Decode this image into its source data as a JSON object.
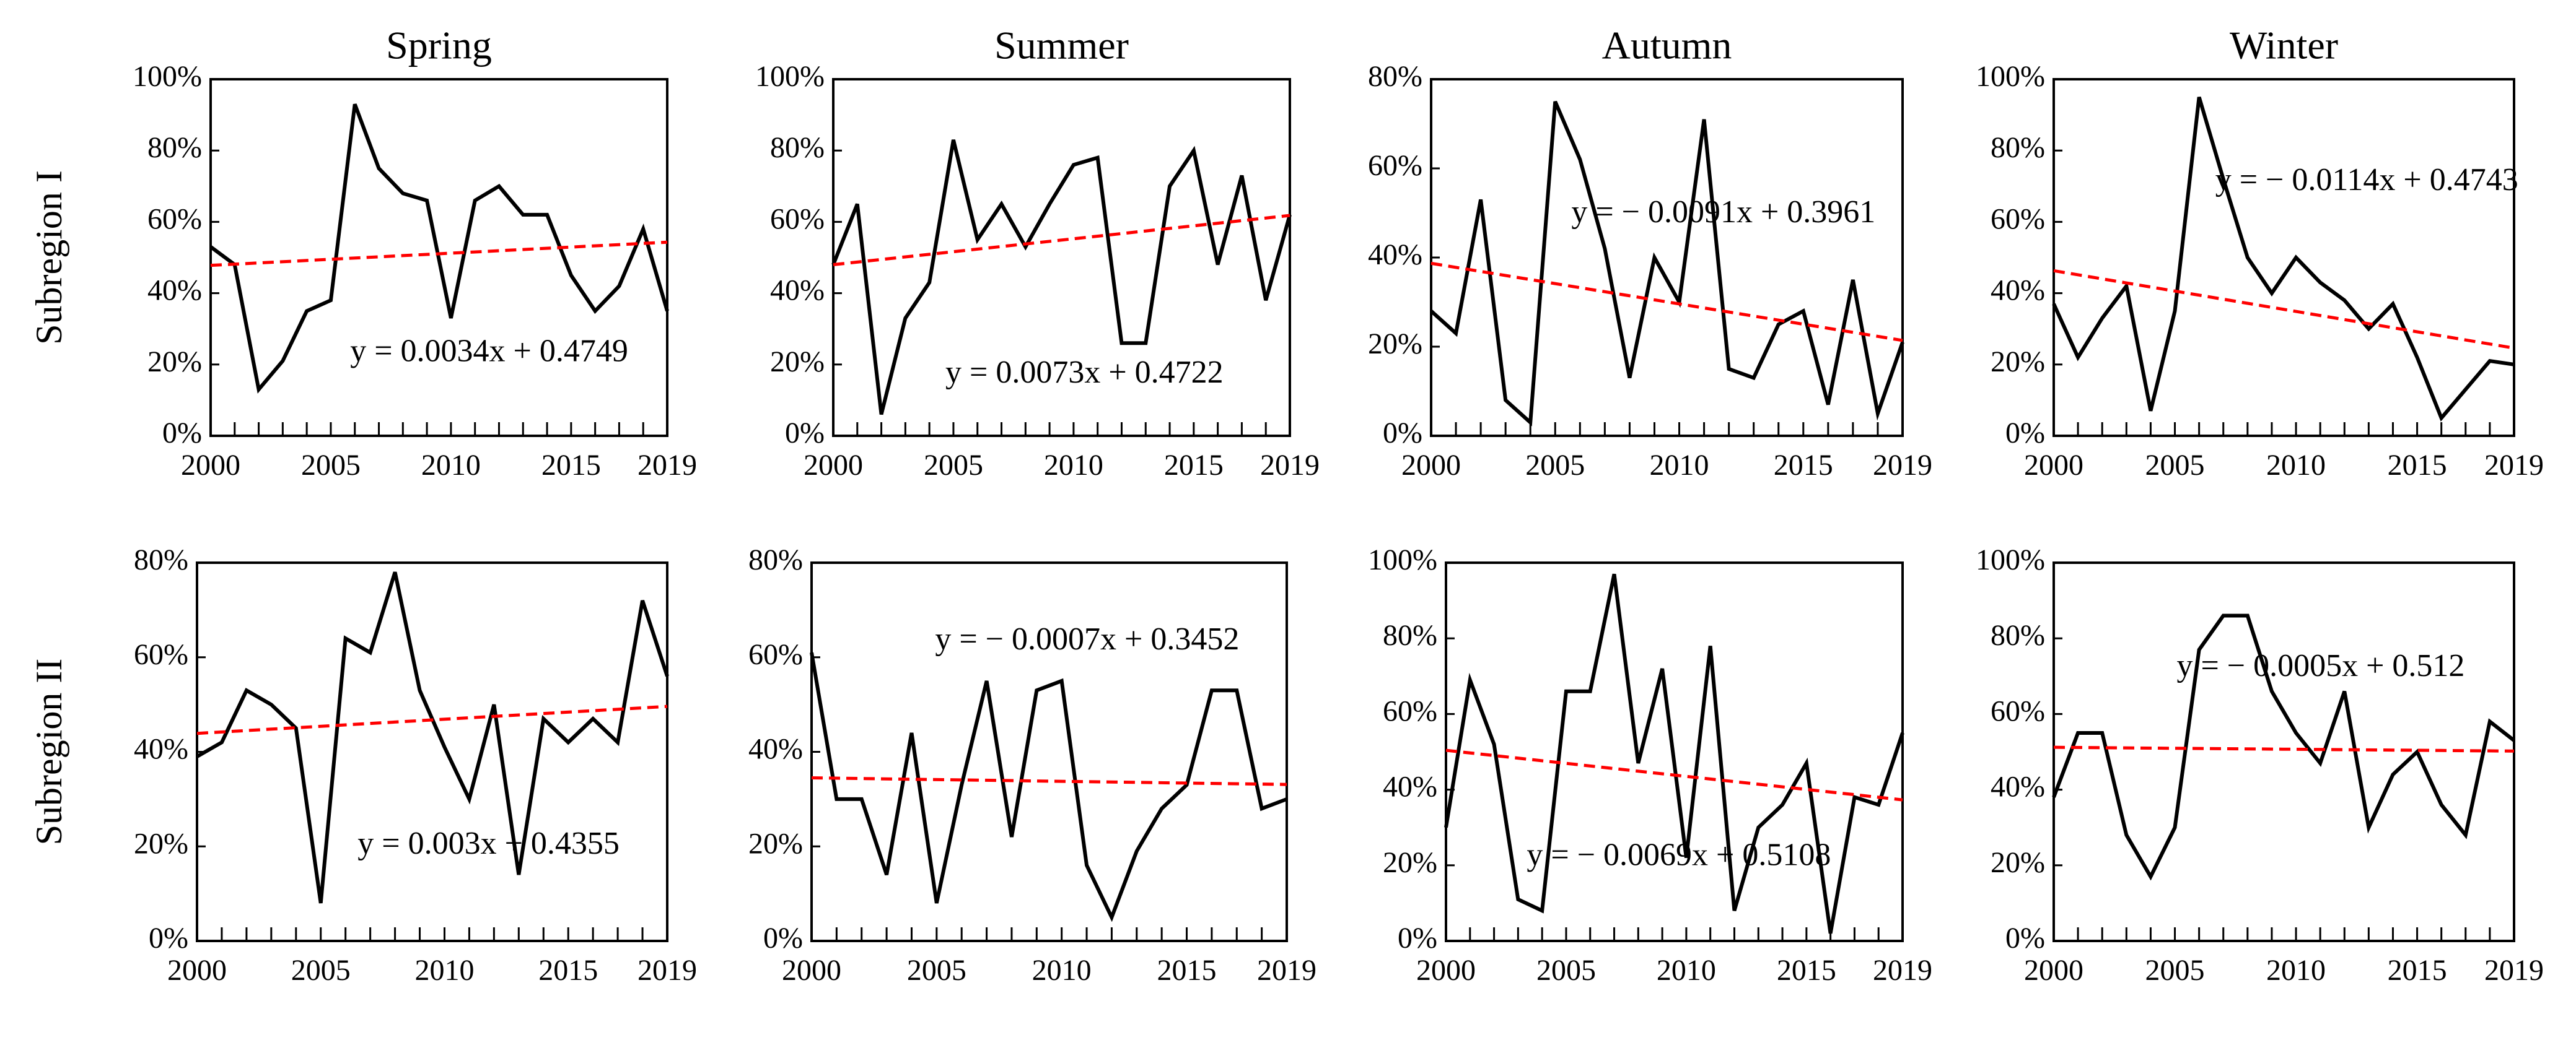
{
  "chart_data": [
    {
      "type": "line",
      "title": "Spring",
      "ylabel": "Subregion I",
      "equation": "y = 0.0034x + 0.4749",
      "x": [
        2000,
        2001,
        2002,
        2003,
        2004,
        2005,
        2006,
        2007,
        2008,
        2009,
        2010,
        2011,
        2012,
        2013,
        2014,
        2015,
        2016,
        2017,
        2018,
        2019
      ],
      "xlim": [
        2000,
        2019
      ],
      "xticks": [
        2000,
        2005,
        2010,
        2015,
        2019
      ],
      "ylim": [
        0,
        100
      ],
      "yticks": [
        {
          "value": 0,
          "label": "0%"
        },
        {
          "value": 20,
          "label": "20%"
        },
        {
          "value": 40,
          "label": "40%"
        },
        {
          "value": 60,
          "label": "60%"
        },
        {
          "value": 80,
          "label": "80%"
        },
        {
          "value": 100,
          "label": "100%"
        }
      ],
      "series": [
        {
          "color": "#000000",
          "values": [
            53,
            48,
            13,
            21,
            35,
            38,
            93,
            75,
            68,
            66,
            33,
            66,
            70,
            62,
            62,
            45,
            35,
            42,
            58,
            35
          ]
        },
        {
          "color": "#ff0000",
          "dashed": true,
          "x": [
            2000,
            2019
          ],
          "values": [
            47.8,
            54.3
          ]
        }
      ]
    },
    {
      "type": "line",
      "title": "Summer",
      "equation": "y = 0.0073x + 0.4722",
      "x": [
        2000,
        2001,
        2002,
        2003,
        2004,
        2005,
        2006,
        2007,
        2008,
        2009,
        2010,
        2011,
        2012,
        2013,
        2014,
        2015,
        2016,
        2017,
        2018,
        2019
      ],
      "xlim": [
        2000,
        2019
      ],
      "xticks": [
        2000,
        2005,
        2010,
        2015,
        2019
      ],
      "ylim": [
        0,
        100
      ],
      "yticks": [
        {
          "value": 0,
          "label": "0%"
        },
        {
          "value": 20,
          "label": "20%"
        },
        {
          "value": 40,
          "label": "40%"
        },
        {
          "value": 60,
          "label": "60%"
        },
        {
          "value": 80,
          "label": "80%"
        },
        {
          "value": 100,
          "label": "100%"
        }
      ],
      "series": [
        {
          "color": "#000000",
          "values": [
            48,
            65,
            6,
            33,
            43,
            83,
            55,
            65,
            53,
            65,
            76,
            78,
            26,
            26,
            70,
            80,
            48,
            73,
            38,
            62
          ]
        },
        {
          "color": "#ff0000",
          "dashed": true,
          "x": [
            2000,
            2019
          ],
          "values": [
            48.0,
            61.8
          ]
        }
      ]
    },
    {
      "type": "line",
      "title": "Autumn",
      "equation": "y = − 0.0091x + 0.3961",
      "x": [
        2000,
        2001,
        2002,
        2003,
        2004,
        2005,
        2006,
        2007,
        2008,
        2009,
        2010,
        2011,
        2012,
        2013,
        2014,
        2015,
        2016,
        2017,
        2018,
        2019
      ],
      "xlim": [
        2000,
        2019
      ],
      "xticks": [
        2000,
        2005,
        2010,
        2015,
        2019
      ],
      "ylim": [
        0,
        80
      ],
      "yticks": [
        {
          "value": 0,
          "label": "0%"
        },
        {
          "value": 20,
          "label": "20%"
        },
        {
          "value": 40,
          "label": "40%"
        },
        {
          "value": 60,
          "label": "60%"
        },
        {
          "value": 80,
          "label": "80%"
        }
      ],
      "series": [
        {
          "color": "#000000",
          "values": [
            28,
            23,
            53,
            8,
            3,
            75,
            62,
            42,
            13,
            40,
            30,
            71,
            15,
            13,
            25,
            28,
            7,
            35,
            5,
            21
          ]
        },
        {
          "color": "#ff0000",
          "dashed": true,
          "x": [
            2000,
            2019
          ],
          "values": [
            38.7,
            21.4
          ]
        }
      ]
    },
    {
      "type": "line",
      "title": "Winter",
      "equation": "y = − 0.0114x + 0.4743",
      "x": [
        2000,
        2001,
        2002,
        2003,
        2004,
        2005,
        2006,
        2007,
        2008,
        2009,
        2010,
        2011,
        2012,
        2013,
        2014,
        2015,
        2016,
        2017,
        2018,
        2019
      ],
      "xlim": [
        2000,
        2019
      ],
      "xticks": [
        2000,
        2005,
        2010,
        2015,
        2019
      ],
      "ylim": [
        0,
        100
      ],
      "yticks": [
        {
          "value": 0,
          "label": "0%"
        },
        {
          "value": 20,
          "label": "20%"
        },
        {
          "value": 40,
          "label": "40%"
        },
        {
          "value": 60,
          "label": "60%"
        },
        {
          "value": 80,
          "label": "80%"
        },
        {
          "value": 100,
          "label": "100%"
        }
      ],
      "series": [
        {
          "color": "#000000",
          "values": [
            37,
            22,
            33,
            42,
            7,
            35,
            95,
            72,
            50,
            40,
            50,
            43,
            38,
            30,
            37,
            22,
            5,
            13,
            21,
            20
          ]
        },
        {
          "color": "#ff0000",
          "dashed": true,
          "x": [
            2000,
            2019
          ],
          "values": [
            46.3,
            24.6
          ]
        }
      ]
    },
    {
      "type": "line",
      "ylabel": "Subregion II",
      "equation": "y = 0.003x + 0.4355",
      "x": [
        2000,
        2001,
        2002,
        2003,
        2004,
        2005,
        2006,
        2007,
        2008,
        2009,
        2010,
        2011,
        2012,
        2013,
        2014,
        2015,
        2016,
        2017,
        2018,
        2019
      ],
      "xlim": [
        2000,
        2019
      ],
      "xticks": [
        2000,
        2005,
        2010,
        2015,
        2019
      ],
      "ylim": [
        0,
        80
      ],
      "yticks": [
        {
          "value": 0,
          "label": "0%"
        },
        {
          "value": 20,
          "label": "20%"
        },
        {
          "value": 40,
          "label": "40%"
        },
        {
          "value": 60,
          "label": "60%"
        },
        {
          "value": 80,
          "label": "80%"
        }
      ],
      "series": [
        {
          "color": "#000000",
          "values": [
            39,
            42,
            53,
            50,
            45,
            8,
            64,
            61,
            78,
            53,
            41,
            30,
            50,
            14,
            47,
            42,
            47,
            42,
            72,
            56
          ]
        },
        {
          "color": "#ff0000",
          "dashed": true,
          "x": [
            2000,
            2019
          ],
          "values": [
            43.9,
            49.6
          ]
        }
      ]
    },
    {
      "type": "line",
      "equation": "y = − 0.0007x + 0.3452",
      "x": [
        2000,
        2001,
        2002,
        2003,
        2004,
        2005,
        2006,
        2007,
        2008,
        2009,
        2010,
        2011,
        2012,
        2013,
        2014,
        2015,
        2016,
        2017,
        2018,
        2019
      ],
      "xlim": [
        2000,
        2019
      ],
      "xticks": [
        2000,
        2005,
        2010,
        2015,
        2019
      ],
      "ylim": [
        0,
        80
      ],
      "yticks": [
        {
          "value": 0,
          "label": "0%"
        },
        {
          "value": 20,
          "label": "20%"
        },
        {
          "value": 40,
          "label": "40%"
        },
        {
          "value": 60,
          "label": "60%"
        },
        {
          "value": 80,
          "label": "80%"
        }
      ],
      "series": [
        {
          "color": "#000000",
          "values": [
            61,
            30,
            30,
            14,
            44,
            8,
            33,
            55,
            22,
            53,
            55,
            16,
            5,
            19,
            28,
            33,
            53,
            53,
            28,
            30
          ]
        },
        {
          "color": "#ff0000",
          "dashed": true,
          "x": [
            2000,
            2019
          ],
          "values": [
            34.5,
            33.1
          ]
        }
      ]
    },
    {
      "type": "line",
      "equation": "y = − 0.0069x + 0.5108",
      "x": [
        2000,
        2001,
        2002,
        2003,
        2004,
        2005,
        2006,
        2007,
        2008,
        2009,
        2010,
        2011,
        2012,
        2013,
        2014,
        2015,
        2016,
        2017,
        2018,
        2019
      ],
      "xlim": [
        2000,
        2019
      ],
      "xticks": [
        2000,
        2005,
        2010,
        2015,
        2019
      ],
      "ylim": [
        0,
        100
      ],
      "yticks": [
        {
          "value": 0,
          "label": "0%"
        },
        {
          "value": 20,
          "label": "20%"
        },
        {
          "value": 40,
          "label": "40%"
        },
        {
          "value": 60,
          "label": "60%"
        },
        {
          "value": 80,
          "label": "80%"
        },
        {
          "value": 100,
          "label": "100%"
        }
      ],
      "series": [
        {
          "color": "#000000",
          "values": [
            30,
            69,
            52,
            11,
            8,
            66,
            66,
            97,
            47,
            72,
            22,
            78,
            8,
            30,
            36,
            47,
            2,
            38,
            36,
            55
          ]
        },
        {
          "color": "#ff0000",
          "dashed": true,
          "x": [
            2000,
            2019
          ],
          "values": [
            50.4,
            37.3
          ]
        }
      ]
    },
    {
      "type": "line",
      "equation": "y = − 0.0005x + 0.512",
      "x": [
        2000,
        2001,
        2002,
        2003,
        2004,
        2005,
        2006,
        2007,
        2008,
        2009,
        2010,
        2011,
        2012,
        2013,
        2014,
        2015,
        2016,
        2017,
        2018,
        2019
      ],
      "xlim": [
        2000,
        2019
      ],
      "xticks": [
        2000,
        2005,
        2010,
        2015,
        2019
      ],
      "ylim": [
        0,
        100
      ],
      "yticks": [
        {
          "value": 0,
          "label": "0%"
        },
        {
          "value": 20,
          "label": "20%"
        },
        {
          "value": 40,
          "label": "40%"
        },
        {
          "value": 60,
          "label": "60%"
        },
        {
          "value": 80,
          "label": "80%"
        },
        {
          "value": 100,
          "label": "100%"
        }
      ],
      "series": [
        {
          "color": "#000000",
          "values": [
            38,
            55,
            55,
            28,
            17,
            30,
            77,
            86,
            86,
            66,
            55,
            47,
            66,
            30,
            44,
            50,
            36,
            28,
            58,
            53
          ]
        },
        {
          "color": "#ff0000",
          "dashed": true,
          "x": [
            2000,
            2019
          ],
          "values": [
            51.2,
            50.2
          ]
        }
      ]
    }
  ]
}
